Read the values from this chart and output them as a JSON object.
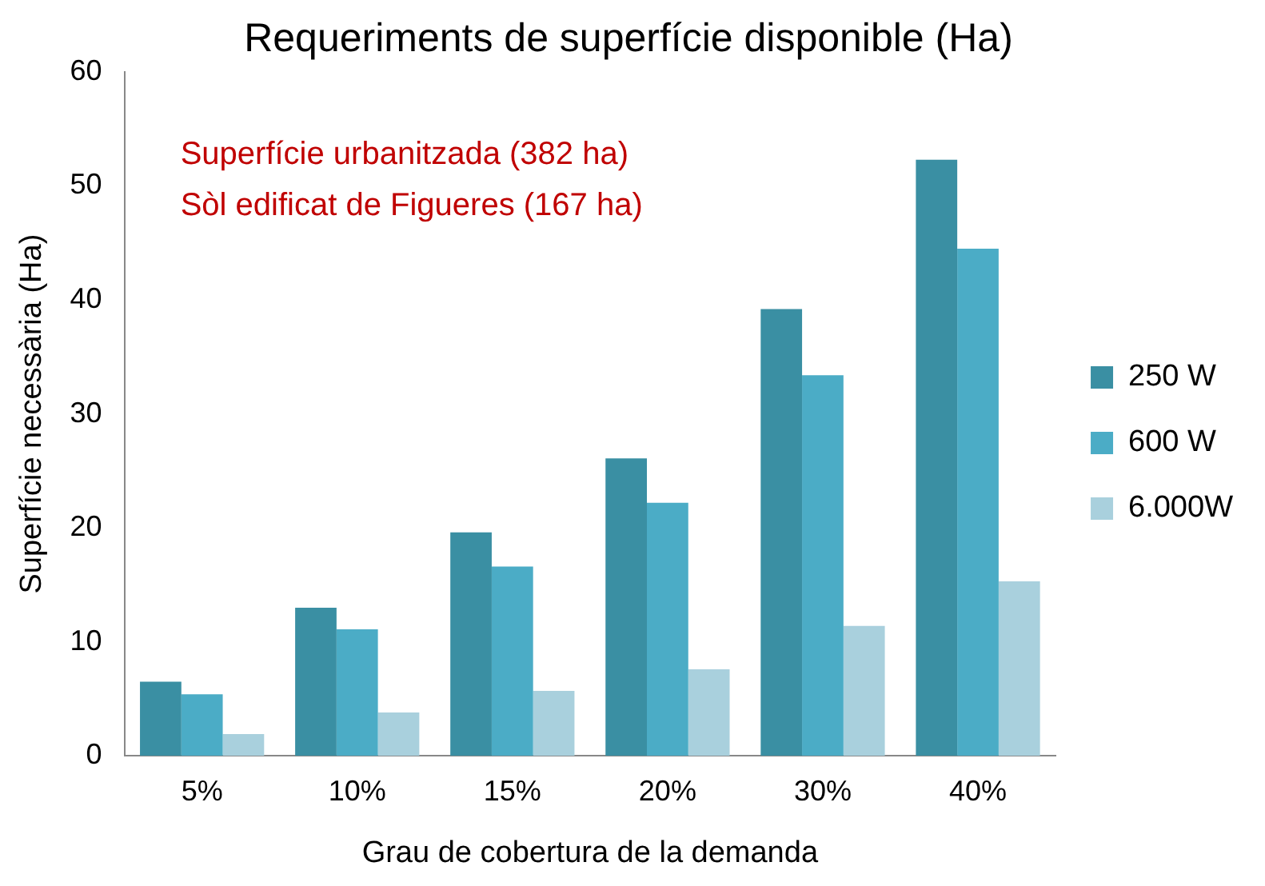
{
  "chart_data": {
    "type": "bar",
    "title": "Requeriments de superfície disponible (Ha)",
    "xlabel": "Grau de cobertura de la demanda",
    "ylabel": "Superfície necessària (Ha)",
    "categories": [
      "5%",
      "10%",
      "15%",
      "20%",
      "30%",
      "40%"
    ],
    "series": [
      {
        "name": "250 W",
        "color": "#3a8fa3",
        "values": [
          6.5,
          13.0,
          19.6,
          26.1,
          39.2,
          52.3
        ]
      },
      {
        "name": "600 W",
        "color": "#4bacc6",
        "values": [
          5.4,
          11.1,
          16.6,
          22.2,
          33.4,
          44.5
        ]
      },
      {
        "name": "6.000W",
        "color": "#a9d0dd",
        "values": [
          1.9,
          3.8,
          5.7,
          7.6,
          11.4,
          15.3
        ]
      }
    ],
    "ylim": [
      0,
      60
    ],
    "yticks": [
      0,
      10,
      20,
      30,
      40,
      50,
      60
    ],
    "grid": false,
    "legend": "right",
    "annotations": [
      "Superfície urbanitzada (382 ha)",
      "Sòl edificat de Figueres (167 ha)"
    ]
  }
}
